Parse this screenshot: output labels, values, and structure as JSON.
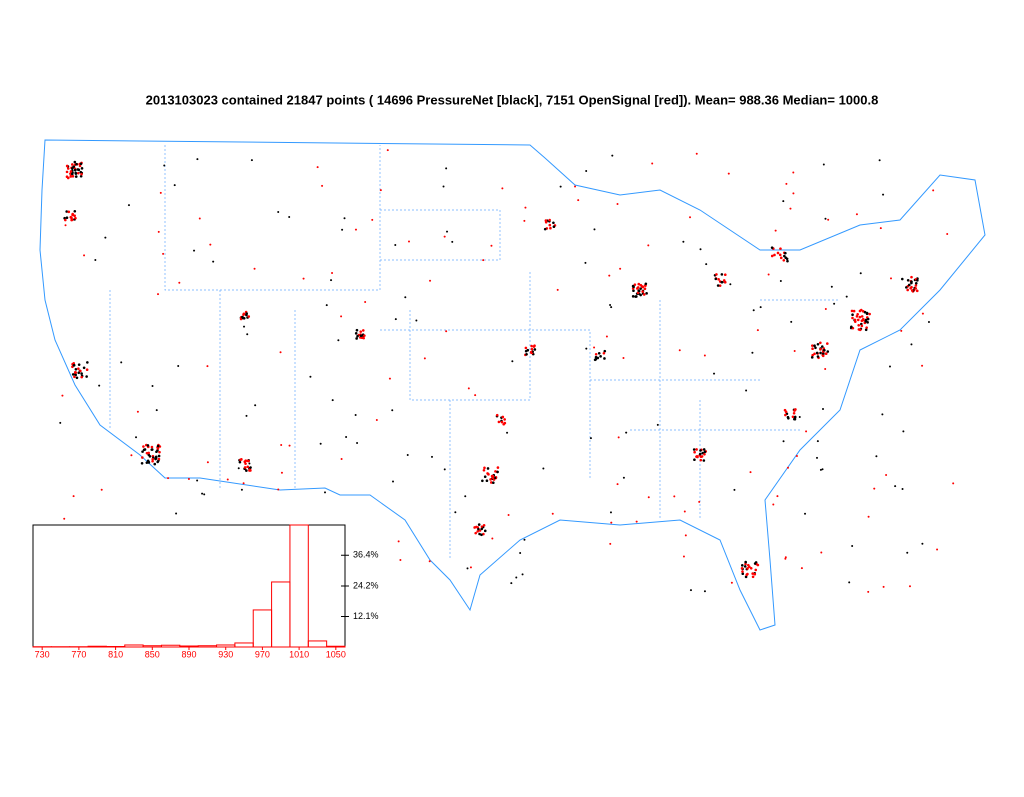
{
  "chart_data": {
    "type": "histogram",
    "title": "2013103023 contained 21847 points ( 14696 PressureNet [black], 7151 OpenSignal [red]).   Mean= 988.36  Median= 1000.8",
    "bins": [
      720,
      740,
      760,
      780,
      800,
      820,
      840,
      860,
      880,
      900,
      920,
      940,
      960,
      980,
      1000,
      1020,
      1040,
      1060
    ],
    "values": [
      0.1,
      0.1,
      0.1,
      0.3,
      0.2,
      0.8,
      0.5,
      0.7,
      0.4,
      0.5,
      0.8,
      1.6,
      14.7,
      25.8,
      48.4,
      2.4,
      0.3
    ],
    "color": "#ff0000",
    "xlim": [
      720,
      1060
    ],
    "xticks": [
      730,
      770,
      810,
      850,
      890,
      930,
      970,
      1010,
      1050
    ],
    "ylim": [
      0,
      48.4
    ],
    "yticks": [
      {
        "value": 12.1,
        "label": "12.1%"
      },
      {
        "value": 24.2,
        "label": "24.2%"
      },
      {
        "value": 36.4,
        "label": "36.4%"
      }
    ]
  }
}
